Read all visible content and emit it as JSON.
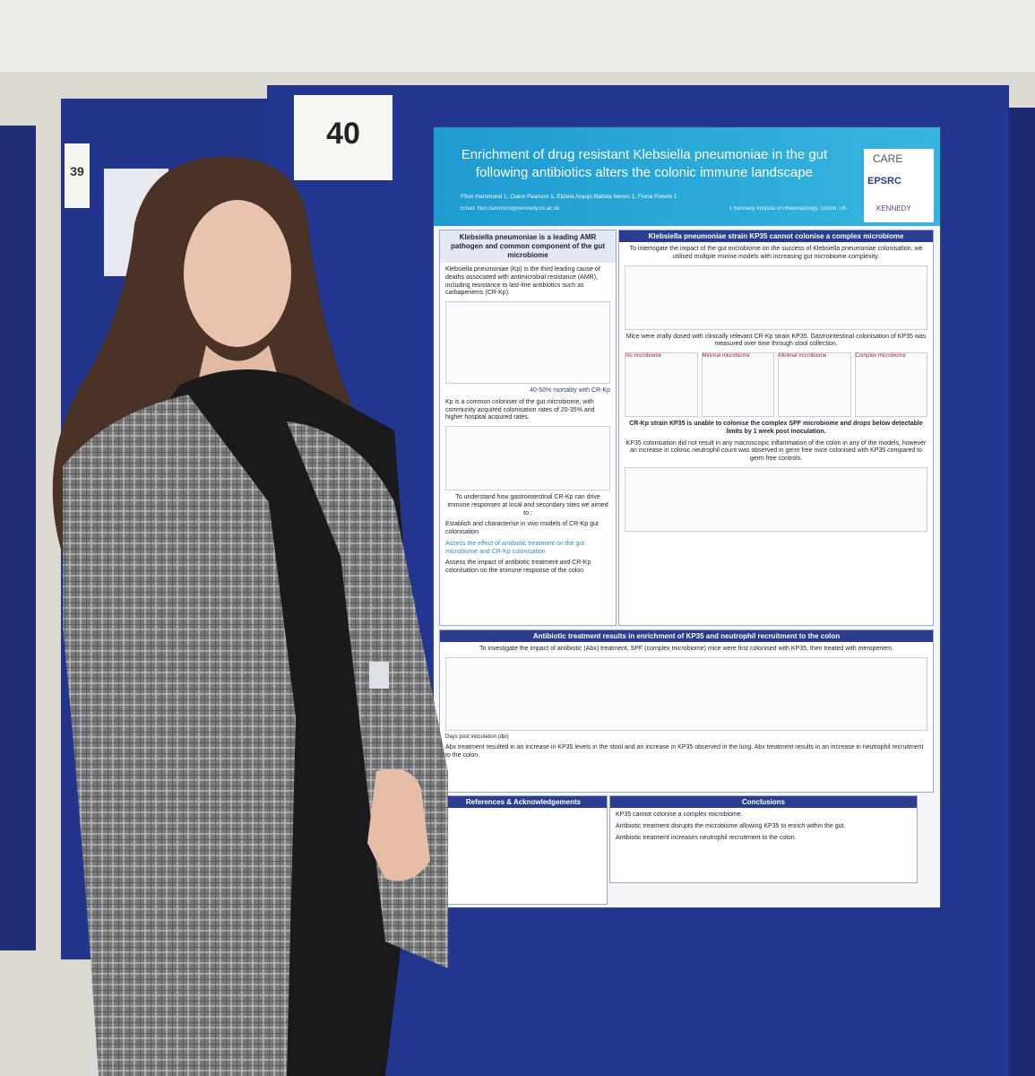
{
  "left_board": {
    "number": "39"
  },
  "board_number": "40",
  "poster": {
    "title_line1": "Enrichment of drug resistant Klebsiella pneumoniae in the gut",
    "title_line2": "following antibiotics alters the colonic immune landscape",
    "authors": "Ffion Hammond 1, Claire Pearson 1, Elizete Araujo Batista Neves 1, Fiona Powrie 1",
    "affiliation": "1 Kennedy Institute of Rheumatology, Oxford, UK",
    "email": "Email: ffion.hammond@kennedy.ox.ac.uk",
    "logos": [
      "CARE",
      "EPSRC",
      "KENNEDY"
    ],
    "intro": {
      "heading": "Klebsiella pneumoniae is a leading AMR pathogen and common component of the gut microbiome",
      "paragraph1": "Klebsiella pneumoniae (Kp) is the third leading cause of deaths associated with antimicrobial resistance (AMR), including resistance to last-line antibiotics such as carbapenems (CR-Kp).",
      "mortality": "40-50% mortality with CR-Kp",
      "paragraph2": "Kp is a common coloniser of the gut microbiome, with community acquired colonisation rates of 20-35% and higher hospital acquired rates.",
      "aims_intro": "To understand how gastrointestinal CR-Kp can drive immune responses at local and secondary sites we aimed to :",
      "aims": [
        "Establish and characterise in vivo models of CR-Kp gut colonisation",
        "Assess the effect of antibiotic treatment on the gut microbiome and CR-Kp colonisation",
        "Assess the impact of antibiotic treatment and CR-Kp colonisation on the immune response of the colon"
      ]
    },
    "section2": {
      "heading": "Klebsiella pneumoniae strain KP35 cannot colonise a complex microbiome",
      "text1": "To interrogate the impact of the gut microbiome on the success of Klebsiella pneumoniae colonisation, we utilised multiple murine models with increasing gut microbiome complexity.",
      "text2": "Mice were orally dosed with clinically relevant CR-Kp strain KP35. Gastrointestinal colonisation of KP35 was measured over time through stool collection.",
      "text3": "CR-Kp strain KP35 is unable to colonise the complex SPF microbiome and drops below detectable limits by 1 week post inoculation.",
      "text4": "KP35 colonisation did not result in any macroscopic inflammation of the colon in any of the models, however an increase in colonic neutrophil count was observed in germ free mice colonised with KP35 compared to germ free controls.",
      "panels": [
        "No microbiome",
        "Minimal microbiome",
        "Minimal microbiome",
        "Complex microbiome"
      ]
    },
    "section3": {
      "heading": "Antibiotic treatment results in enrichment of KP35 and neutrophil recruitment to the colon",
      "text1": "To investigate the impact of antibiotic (Abx) treatment, SPF (complex microbiome) mice were first colonised with KP35, then treated with meropenem.",
      "text2": "Abx treatment resulted in an increase in KP35 levels in the stool and an increase in KP35 observed in the lung. Abx treatment results in an increase in neutrophil recruitment to the colon.",
      "axis_label": "Days post inoculation (dpi)"
    },
    "references": {
      "heading": "References & Acknowledgements"
    },
    "conclusions": {
      "heading": "Conclusions",
      "items": [
        "KP35 cannot colonise a complex microbiome.",
        "Antibiotic treatment disrupts the microbiome allowing KP35 to enrich within the gut.",
        "Antibiotic treatment increases neutrophil recruitment to the colon."
      ]
    }
  }
}
